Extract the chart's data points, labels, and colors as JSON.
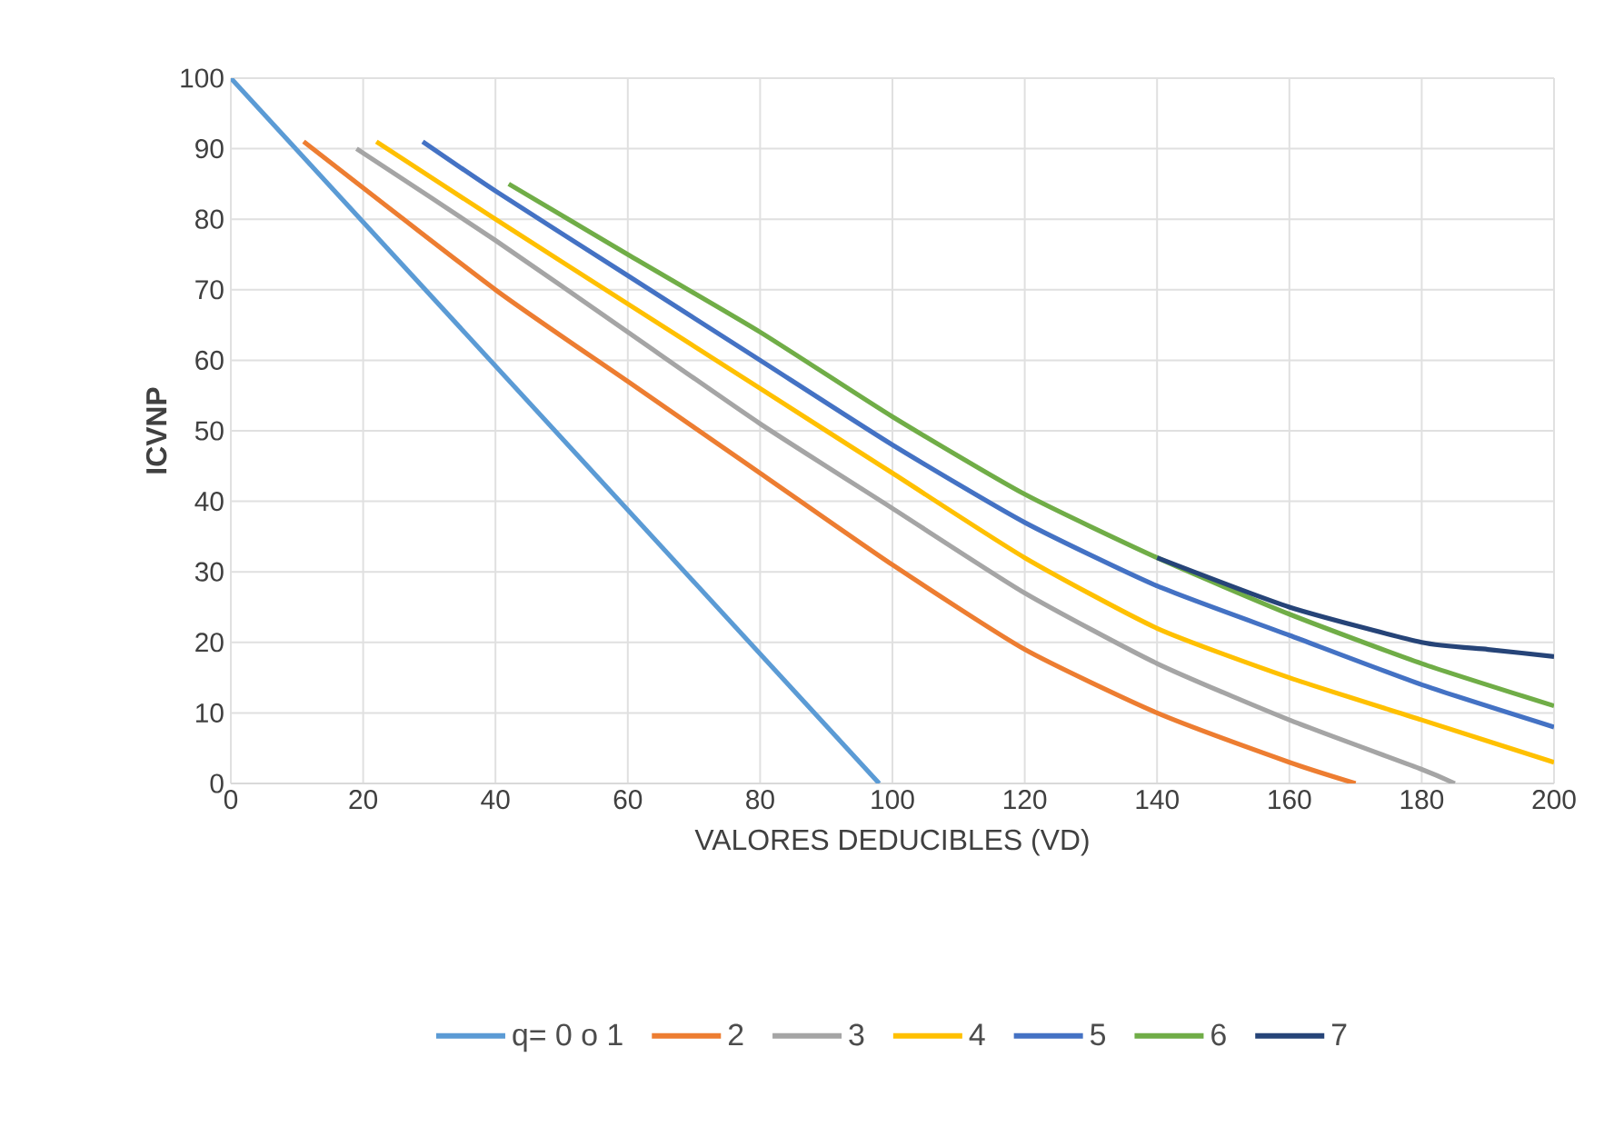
{
  "chart_data": {
    "type": "line",
    "xlabel": "VALORES DEDUCIBLES (VD)",
    "ylabel": "ICVNP",
    "xlim": [
      0,
      200
    ],
    "ylim": [
      0,
      100
    ],
    "xticks": [
      0,
      20,
      40,
      60,
      80,
      100,
      120,
      140,
      160,
      180,
      200
    ],
    "yticks": [
      0,
      10,
      20,
      30,
      40,
      50,
      60,
      70,
      80,
      90,
      100
    ],
    "grid": true,
    "legend": "bottom",
    "marker": "none",
    "line_style": "solid",
    "series": [
      {
        "name": "q= 0 o 1",
        "color": "#5b9bd5",
        "x": [
          0,
          98
        ],
        "values": [
          100,
          0
        ]
      },
      {
        "name": "2",
        "color": "#ed7d31",
        "x": [
          11,
          40,
          60,
          80,
          100,
          120,
          140,
          160,
          170
        ],
        "values": [
          91,
          70,
          57,
          44,
          31,
          19,
          10,
          3,
          0
        ]
      },
      {
        "name": "3",
        "color": "#a5a5a5",
        "x": [
          19,
          40,
          60,
          80,
          100,
          120,
          140,
          160,
          180,
          185
        ],
        "values": [
          90,
          77,
          64,
          51,
          39,
          27,
          17,
          9,
          2,
          0
        ]
      },
      {
        "name": "4",
        "color": "#ffc000",
        "x": [
          22,
          40,
          60,
          80,
          100,
          120,
          140,
          160,
          180,
          200
        ],
        "values": [
          91,
          80,
          68,
          56,
          44,
          32,
          22,
          15,
          9,
          3
        ]
      },
      {
        "name": "5",
        "color": "#4472c4",
        "x": [
          29,
          40,
          60,
          80,
          100,
          120,
          140,
          160,
          180,
          200
        ],
        "values": [
          91,
          84,
          72,
          60,
          48,
          37,
          28,
          21,
          14,
          8
        ]
      },
      {
        "name": "6",
        "color": "#70ad47",
        "x": [
          42,
          60,
          80,
          100,
          120,
          140,
          160,
          180,
          200
        ],
        "values": [
          85,
          75,
          64,
          52,
          41,
          32,
          24,
          17,
          11
        ]
      },
      {
        "name": "7",
        "color": "#264478",
        "x": [
          140,
          160,
          180,
          190,
          200
        ],
        "values": [
          32,
          25,
          20,
          19,
          18
        ]
      }
    ]
  }
}
